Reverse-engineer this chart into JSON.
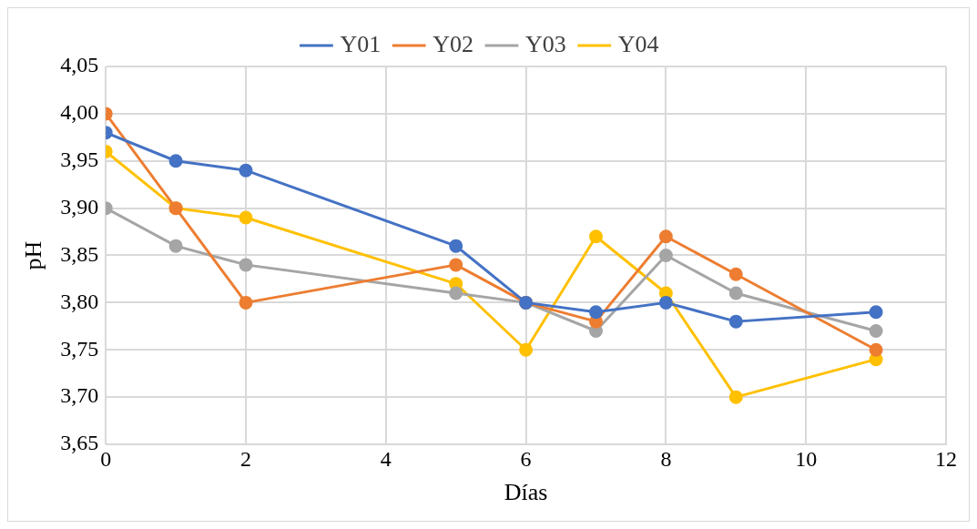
{
  "chart_data": {
    "type": "line",
    "xlabel": "Días",
    "ylabel": "pH",
    "x": [
      0,
      1,
      2,
      5,
      6,
      7,
      8,
      9,
      11
    ],
    "series": [
      {
        "name": "Y01",
        "color": "#4472c4",
        "values": [
          3.98,
          3.95,
          3.94,
          3.86,
          3.8,
          3.79,
          3.8,
          3.78,
          3.79
        ]
      },
      {
        "name": "Y02",
        "color": "#ed7d31",
        "values": [
          4.0,
          3.9,
          3.8,
          3.84,
          3.8,
          3.78,
          3.87,
          3.83,
          3.75
        ]
      },
      {
        "name": "Y03",
        "color": "#a5a5a5",
        "values": [
          3.9,
          3.86,
          3.84,
          3.81,
          3.8,
          3.77,
          3.85,
          3.81,
          3.77
        ]
      },
      {
        "name": "Y04",
        "color": "#ffc000",
        "values": [
          3.96,
          3.9,
          3.89,
          3.82,
          3.75,
          3.87,
          3.81,
          3.7,
          3.74
        ]
      }
    ],
    "xlim": [
      0,
      12
    ],
    "xticks": [
      0,
      2,
      4,
      6,
      8,
      10,
      12
    ],
    "ylim": [
      3.65,
      4.05
    ],
    "yticks": [
      {
        "value": 3.65,
        "label": "3,65"
      },
      {
        "value": 3.7,
        "label": "3,70"
      },
      {
        "value": 3.75,
        "label": "3,75"
      },
      {
        "value": 3.8,
        "label": "3,80"
      },
      {
        "value": 3.85,
        "label": "3,85"
      },
      {
        "value": 3.9,
        "label": "3,90"
      },
      {
        "value": 3.95,
        "label": "3,95"
      },
      {
        "value": 4.0,
        "label": "4,00"
      },
      {
        "value": 4.05,
        "label": "4,05"
      }
    ],
    "grid": true,
    "legend": "top",
    "marker": "circle",
    "line_style": "solid"
  }
}
